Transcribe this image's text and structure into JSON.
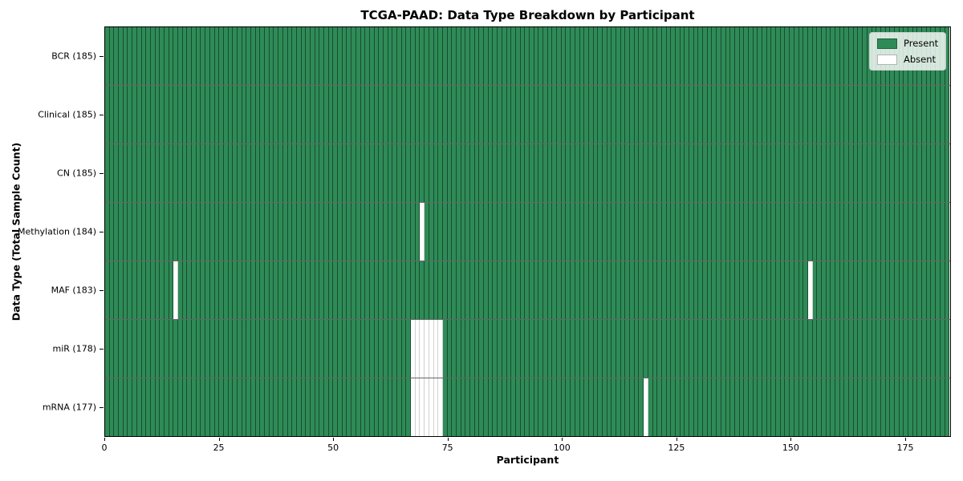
{
  "title": "TCGA-PAAD: Data Type Breakdown by Participant",
  "chart_data": {
    "type": "heatmap",
    "title": "TCGA-PAAD: Data Type Breakdown by Participant",
    "xlabel": "Participant",
    "ylabel": "Data Type (Total Sample Count)",
    "x_range": [
      0,
      185
    ],
    "n_participants": 185,
    "x_ticks": [
      0,
      25,
      50,
      75,
      100,
      125,
      150,
      175
    ],
    "grid": false,
    "rows": [
      {
        "name": "BCR",
        "label": "BCR (185)",
        "total_present": 185,
        "absent_participants": []
      },
      {
        "name": "Clinical",
        "label": "Clinical (185)",
        "total_present": 185,
        "absent_participants": []
      },
      {
        "name": "CN",
        "label": "CN (185)",
        "total_present": 185,
        "absent_participants": []
      },
      {
        "name": "Methylation",
        "label": "Methylation (184)",
        "total_present": 184,
        "absent_participants": [
          69
        ]
      },
      {
        "name": "MAF",
        "label": "MAF (183)",
        "total_present": 183,
        "absent_participants": [
          15,
          154
        ]
      },
      {
        "name": "miR",
        "label": "miR (178)",
        "total_present": 178,
        "absent_participants": [
          67,
          68,
          69,
          70,
          71,
          72,
          73
        ]
      },
      {
        "name": "mRNA",
        "label": "mRNA (177)",
        "total_present": 177,
        "absent_participants": [
          67,
          68,
          69,
          70,
          71,
          72,
          73,
          118
        ]
      }
    ],
    "legend": {
      "position": "upper right",
      "entries": [
        {
          "label": "Present",
          "color": "#2e8b57"
        },
        {
          "label": "Absent",
          "color": "#ffffff"
        }
      ]
    },
    "colors": {
      "present": "#2e8b57",
      "absent": "#ffffff",
      "cell_edge": "#000000"
    }
  }
}
